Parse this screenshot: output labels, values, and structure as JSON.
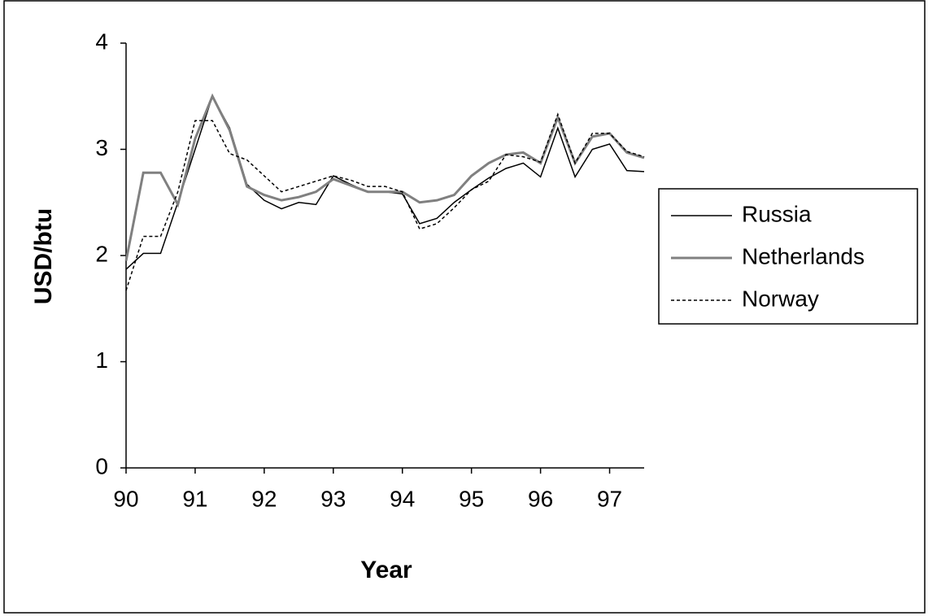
{
  "chart_data": {
    "type": "line",
    "x_label": "Year",
    "y_label": "USD/btu",
    "x": [
      90,
      90.25,
      90.5,
      90.75,
      91,
      91.25,
      91.5,
      91.75,
      92,
      92.25,
      92.5,
      92.75,
      93,
      93.25,
      93.5,
      93.75,
      94,
      94.25,
      94.5,
      94.75,
      95,
      95.25,
      95.5,
      95.75,
      96,
      96.25,
      96.5,
      96.75,
      97,
      97.25,
      97.5
    ],
    "series": [
      {
        "name": "Russia",
        "color": "#000000",
        "width": 1.5,
        "dashed": false,
        "values": [
          1.87,
          2.02,
          2.02,
          2.5,
          3.0,
          3.5,
          3.2,
          2.67,
          2.52,
          2.44,
          2.5,
          2.48,
          2.75,
          2.67,
          2.6,
          2.6,
          2.58,
          2.3,
          2.35,
          2.5,
          2.62,
          2.73,
          2.82,
          2.87,
          2.74,
          3.2,
          2.74,
          3.0,
          3.05,
          2.8,
          2.79
        ]
      },
      {
        "name": "Netherlands",
        "color": "#808080",
        "width": 3,
        "dashed": false,
        "values": [
          1.95,
          2.78,
          2.78,
          2.48,
          3.1,
          3.5,
          3.18,
          2.65,
          2.57,
          2.52,
          2.55,
          2.6,
          2.72,
          2.66,
          2.6,
          2.6,
          2.6,
          2.5,
          2.52,
          2.57,
          2.75,
          2.87,
          2.95,
          2.97,
          2.87,
          3.3,
          2.87,
          3.12,
          3.15,
          2.97,
          2.92
        ]
      },
      {
        "name": "Norway",
        "color": "#000000",
        "width": 1.5,
        "dashed": true,
        "values": [
          1.67,
          2.18,
          2.18,
          2.6,
          3.27,
          3.27,
          2.96,
          2.9,
          2.75,
          2.6,
          2.65,
          2.7,
          2.75,
          2.71,
          2.65,
          2.65,
          2.6,
          2.25,
          2.3,
          2.45,
          2.62,
          2.7,
          2.95,
          2.93,
          2.88,
          3.33,
          2.87,
          3.15,
          3.15,
          2.98,
          2.93
        ]
      }
    ],
    "xlim": [
      90,
      97.5
    ],
    "xticks": [
      90,
      91,
      92,
      93,
      94,
      95,
      96,
      97
    ],
    "ylim": [
      0,
      4
    ],
    "yticks": [
      0,
      1,
      2,
      3,
      4
    ],
    "grid": false,
    "legend": "right"
  }
}
